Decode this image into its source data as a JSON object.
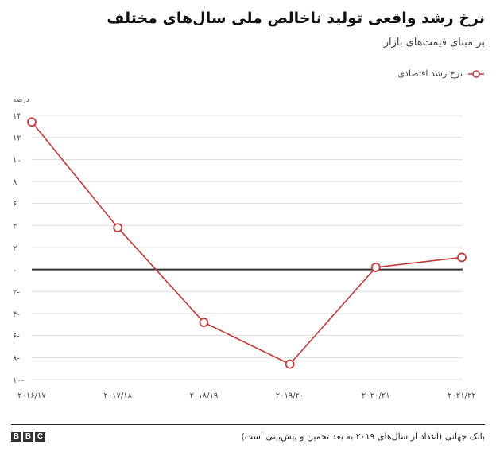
{
  "header": {
    "title": "نرخ رشد واقعی تولید ناخالص ملی سال‌های مختلف",
    "subtitle": "بر مبنای قیمت‌های بازار"
  },
  "footer": {
    "source": "بانک جهانی (اعداد از سال‌های ۲۰۱۹ به بعد تخمین و پیش‌بینی است)",
    "logo_letters": [
      "B",
      "B",
      "C"
    ]
  },
  "colors": {
    "series": "#c0393b",
    "grid": "#dddddd",
    "zero": "#333333"
  },
  "chart_data": {
    "type": "line",
    "title": "نرخ رشد واقعی تولید ناخالص ملی سال‌های مختلف",
    "subtitle": "بر مبنای قیمت‌های بازار",
    "ylabel": "درصد",
    "categories": [
      "۲۰۱۶/۱۷",
      "۲۰۱۷/۱۸",
      "۲۰۱۸/۱۹",
      "۲۰۱۹/۲۰",
      "۲۰۲۰/۲۱",
      "۲۰۲۱/۲۲"
    ],
    "series": [
      {
        "name": "نرخ رشد اقتصادی",
        "values": [
          13.4,
          3.8,
          -4.8,
          -8.6,
          0.2,
          1.1
        ]
      }
    ],
    "ylim": [
      -10,
      14
    ],
    "yticks": [
      14,
      12,
      10,
      8,
      6,
      4,
      2,
      0,
      -2,
      -4,
      -6,
      -8,
      -10
    ],
    "ytick_labels": [
      "۱۴",
      "۱۲",
      "۱۰",
      "۸",
      "۶",
      "۴",
      "۲",
      "۰",
      "۲-",
      "۴-",
      "۶-",
      "۸-",
      "۱۰-"
    ],
    "grid": true,
    "legend_position": "top-right"
  }
}
